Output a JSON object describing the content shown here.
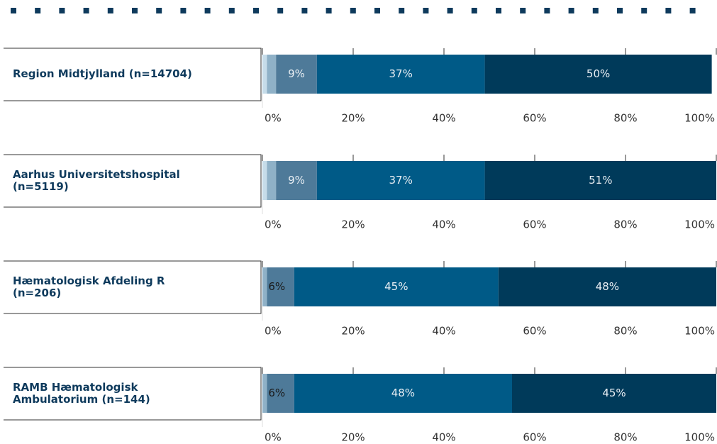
{
  "chart_data": {
    "type": "stacked-barh",
    "categories": [
      "Region Midtjylland (n=14704)",
      "Aarhus Universitetshospital (n=5119)",
      "Hæmatologisk Afdeling R (n=206)",
      "RAMB Hæmatologisk Ambulatorium (n=144)"
    ],
    "series": [
      {
        "color": "#c6dce9",
        "values": [
          1,
          1,
          0,
          0
        ],
        "value_labels": [
          null,
          null,
          null,
          null
        ]
      },
      {
        "color": "#8fb1c7",
        "values": [
          2,
          2,
          1,
          1
        ],
        "value_labels": [
          null,
          null,
          null,
          null
        ]
      },
      {
        "color": "#4e7a99",
        "values": [
          9,
          9,
          6,
          6
        ],
        "value_labels": [
          "9%",
          "9%",
          "6%",
          "6%"
        ]
      },
      {
        "color": "#005a87",
        "values": [
          37,
          37,
          45,
          48
        ],
        "value_labels": [
          "37%",
          "37%",
          "45%",
          "48%"
        ]
      },
      {
        "color": "#003a5a",
        "values": [
          50,
          51,
          48,
          45
        ],
        "value_labels": [
          "50%",
          "51%",
          "48%",
          "45%"
        ]
      }
    ],
    "xlim": [
      0,
      100
    ],
    "xticks": [
      {
        "value": 0,
        "label": "0%"
      },
      {
        "value": 20,
        "label": "20%"
      },
      {
        "value": 40,
        "label": "40%"
      },
      {
        "value": 60,
        "label": "60%"
      },
      {
        "value": 80,
        "label": "80%"
      },
      {
        "value": 100,
        "label": "100%"
      }
    ]
  }
}
